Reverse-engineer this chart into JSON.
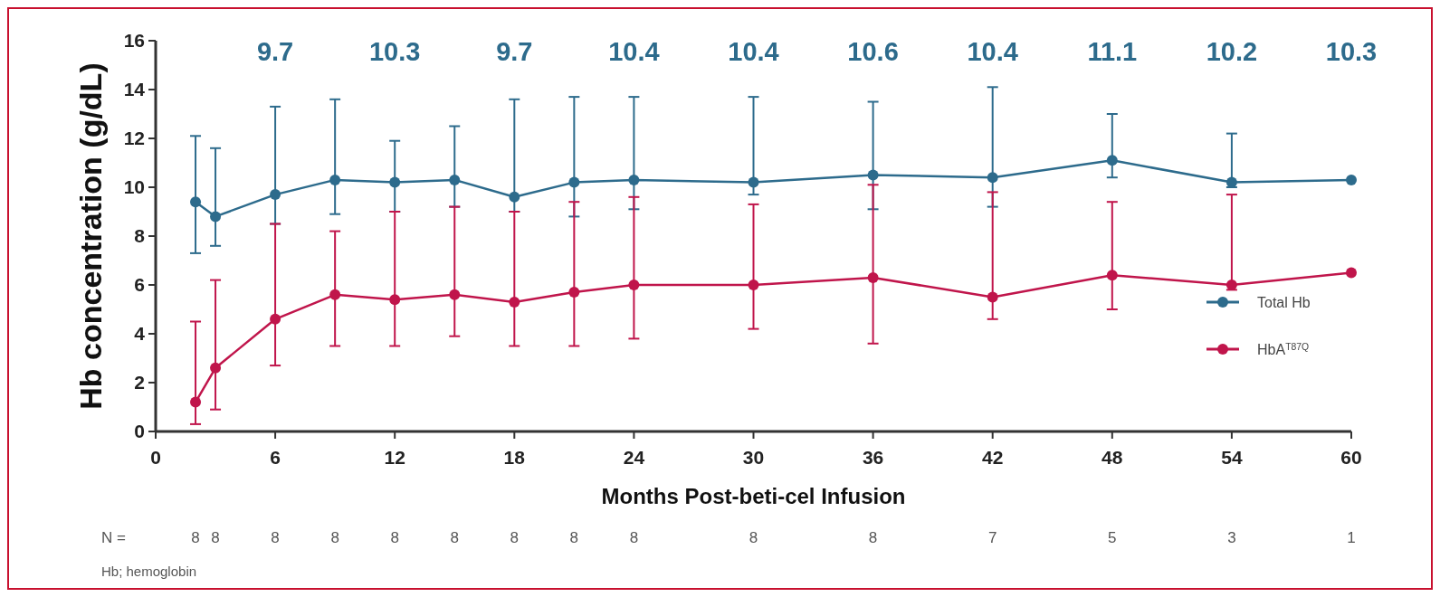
{
  "chart_data": {
    "type": "line",
    "xlabel": "Months Post-beti-cel Infusion",
    "ylabel": "Hb concentration (g/dL)",
    "x": [
      2,
      3,
      6,
      9,
      12,
      15,
      18,
      21,
      24,
      30,
      36,
      42,
      48,
      54,
      60
    ],
    "xlim": [
      0,
      60
    ],
    "xticks": [
      0,
      6,
      12,
      18,
      24,
      30,
      36,
      42,
      48,
      54,
      60
    ],
    "ylim": [
      0,
      16
    ],
    "yticks": [
      0,
      2,
      4,
      6,
      8,
      10,
      12,
      14,
      16
    ],
    "grid": false,
    "legend": "bottom right",
    "marker": "circle",
    "line_style": "solid",
    "series": [
      {
        "name": "Total Hb",
        "color": "#2d6b8c",
        "values": [
          9.4,
          8.8,
          9.7,
          10.3,
          10.2,
          10.3,
          9.6,
          10.2,
          10.3,
          10.2,
          10.5,
          10.4,
          11.1,
          10.2,
          10.3
        ],
        "errors": [
          [
            7.3,
            12.1
          ],
          [
            7.6,
            11.6
          ],
          [
            8.5,
            13.3
          ],
          [
            8.9,
            13.6
          ],
          [
            9.0,
            11.9
          ],
          [
            9.2,
            12.5
          ],
          [
            9.0,
            13.6
          ],
          [
            8.8,
            13.7
          ],
          [
            9.1,
            13.7
          ],
          [
            9.7,
            13.7
          ],
          [
            9.1,
            13.5
          ],
          [
            9.2,
            14.1
          ],
          [
            10.4,
            13.0
          ],
          [
            10.0,
            12.2
          ],
          null
        ]
      },
      {
        "name": "HbA$^{T87Q}$",
        "color": "#c0154b",
        "values": [
          1.2,
          2.6,
          4.6,
          5.6,
          5.4,
          5.6,
          5.3,
          5.7,
          6.0,
          6.0,
          6.3,
          5.5,
          6.4,
          6.0,
          6.5
        ],
        "errors": [
          [
            0.3,
            4.5
          ],
          [
            0.9,
            6.2
          ],
          [
            2.7,
            8.5
          ],
          [
            3.5,
            8.2
          ],
          [
            3.5,
            9.0
          ],
          [
            3.9,
            9.2
          ],
          [
            3.5,
            9.0
          ],
          [
            3.5,
            9.4
          ],
          [
            3.8,
            9.6
          ],
          [
            4.2,
            9.3
          ],
          [
            3.6,
            10.1
          ],
          [
            4.6,
            9.8
          ],
          [
            5.0,
            9.4
          ],
          [
            5.8,
            9.7
          ],
          null
        ]
      }
    ],
    "annotations": [
      "N =",
      "8",
      "8",
      "8",
      "8",
      "8",
      "8",
      "8",
      "8",
      "8",
      "8",
      "8",
      "7",
      "5",
      "3",
      "1",
      "Hb; hemoglobin",
      "9.7",
      "10.3",
      "9.7",
      "10.4",
      "10.4",
      "10.6",
      "10.4",
      "11.1",
      "10.2",
      "10.3"
    ]
  }
}
